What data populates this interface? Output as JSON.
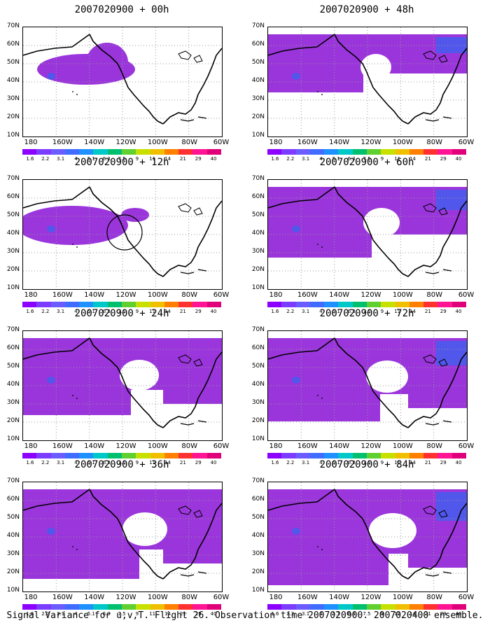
{
  "map": {
    "y_labels": [
      "70N",
      "60N",
      "50N",
      "40N",
      "30N",
      "20N",
      "10N"
    ],
    "x_labels": [
      "180",
      "160W",
      "140W",
      "120W",
      "100W",
      "80W",
      "60W"
    ],
    "colorbar": {
      "labels": [
        "1.6",
        "2.2",
        "3.1",
        "4",
        "5.1",
        "6.3",
        "7.5",
        "9",
        "11",
        "14",
        "21",
        "29",
        "40"
      ],
      "colors": [
        "#8b00ff",
        "#7c3cff",
        "#6a5cff",
        "#3f6bff",
        "#1e90ff",
        "#00c8c8",
        "#00c070",
        "#60d030",
        "#c8e000",
        "#f0c000",
        "#ff8000",
        "#ff3030",
        "#ff1493",
        "#e0007a"
      ]
    },
    "fill_color": "#9020d8",
    "strong_color": "#4060f0"
  },
  "panels": [
    {
      "title": "2007020900 + 00h"
    },
    {
      "title": "2007020900 + 48h"
    },
    {
      "title": "2007020900 + 12h"
    },
    {
      "title": "2007020900 + 60h"
    },
    {
      "title": "2007020900 + 24h"
    },
    {
      "title": "2007020900 + 72h"
    },
    {
      "title": "2007020900 + 36h"
    },
    {
      "title": "2007020900 + 84h"
    }
  ],
  "caption": "Signal Variance for u,v,T. Flight 26. Observation time 2007020900. 2007020400 ensemble."
}
